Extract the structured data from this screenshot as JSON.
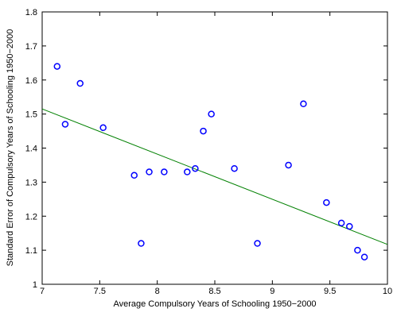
{
  "chart_data": {
    "type": "scatter",
    "xlabel": "Average Compulsory Years of Schooling 1950−2000",
    "ylabel": "Standard Error of Compulsory Years of Schooling 1950−2000",
    "xlim": [
      7,
      10
    ],
    "ylim": [
      1,
      1.8
    ],
    "xticks": [
      7,
      7.5,
      8,
      8.5,
      9,
      9.5,
      10
    ],
    "yticks": [
      1,
      1.1,
      1.2,
      1.3,
      1.4,
      1.5,
      1.6,
      1.7,
      1.8
    ],
    "grid": false,
    "series": [
      {
        "color": "#0000ff",
        "x": [
          7.13,
          7.2,
          7.33,
          7.53,
          7.8,
          7.86,
          7.93,
          8.06,
          8.26,
          8.33,
          8.4,
          8.47,
          8.67,
          8.87,
          9.14,
          9.27,
          9.47,
          9.6,
          9.67,
          9.74,
          9.8
        ],
        "values": [
          1.64,
          1.47,
          1.59,
          1.46,
          1.32,
          1.12,
          1.33,
          1.33,
          1.33,
          1.34,
          1.45,
          1.5,
          1.34,
          1.12,
          1.35,
          1.53,
          1.24,
          1.18,
          1.17,
          1.1,
          1.08
        ]
      }
    ],
    "fit_line": {
      "color": "#008000",
      "x": [
        7,
        10
      ],
      "values": [
        1.515,
        1.117
      ]
    }
  }
}
